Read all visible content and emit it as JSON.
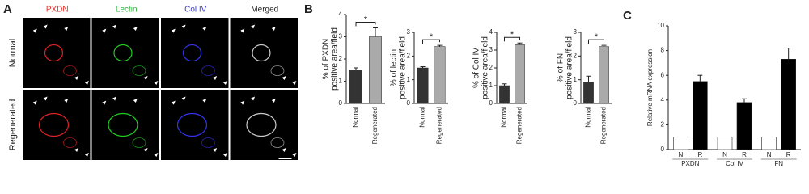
{
  "panel_labels": [
    "A",
    "B",
    "C"
  ],
  "panel_a": {
    "columns": [
      "PXDN",
      "Lectin",
      "Col IV",
      "Merged"
    ],
    "rows": [
      "Normal",
      "Regenerated"
    ]
  },
  "chart_data": [
    {
      "type": "bar",
      "ylabel": [
        "% of PXDN",
        "positive area/field"
      ],
      "categories": [
        "Normal",
        "Regenerated"
      ],
      "values": [
        1.5,
        3.0
      ],
      "errors": [
        0.1,
        0.4
      ],
      "colors": [
        "#333333",
        "#aaaaaa"
      ],
      "ylim": [
        0,
        4
      ],
      "yticks": [
        0,
        1,
        2,
        3,
        4
      ],
      "annotation": "*"
    },
    {
      "type": "bar",
      "ylabel": [
        "% of lectin",
        "positive area/field"
      ],
      "categories": [
        "Normal",
        "Regenerated"
      ],
      "values": [
        1.5,
        2.4
      ],
      "errors": [
        0.05,
        0.05
      ],
      "colors": [
        "#333333",
        "#aaaaaa"
      ],
      "ylim": [
        0,
        3
      ],
      "yticks": [
        0,
        1,
        2,
        3
      ],
      "annotation": "*"
    },
    {
      "type": "bar",
      "ylabel": [
        "% of Col IV",
        "positive area/field"
      ],
      "categories": [
        "Normal",
        "Regenerated"
      ],
      "values": [
        1.0,
        3.3
      ],
      "errors": [
        0.1,
        0.1
      ],
      "colors": [
        "#333333",
        "#aaaaaa"
      ],
      "ylim": [
        0,
        4
      ],
      "yticks": [
        0,
        1,
        2,
        3,
        4
      ],
      "annotation": "*"
    },
    {
      "type": "bar",
      "ylabel": [
        "% of FN",
        "positive area/field"
      ],
      "categories": [
        "Normal",
        "Regenerated"
      ],
      "values": [
        0.9,
        2.4
      ],
      "errors": [
        0.25,
        0.05
      ],
      "colors": [
        "#333333",
        "#aaaaaa"
      ],
      "ylim": [
        0,
        3
      ],
      "yticks": [
        0,
        1,
        2,
        3
      ],
      "annotation": "*"
    },
    {
      "type": "grouped_bar",
      "ylabel": [
        "Relative mRNA expression"
      ],
      "categories": [
        "PXDN",
        "Col IV",
        "FN"
      ],
      "series": [
        {
          "name": "N",
          "color": "#ffffff",
          "values": [
            1,
            1,
            1
          ],
          "errors": [
            0,
            0,
            0
          ]
        },
        {
          "name": "R",
          "color": "#000000",
          "values": [
            5.5,
            3.8,
            7.3
          ],
          "errors": [
            0.5,
            0.3,
            0.9
          ]
        }
      ],
      "ylim": [
        0,
        10
      ],
      "yticks": [
        0,
        2,
        4,
        6,
        8,
        10
      ]
    }
  ]
}
